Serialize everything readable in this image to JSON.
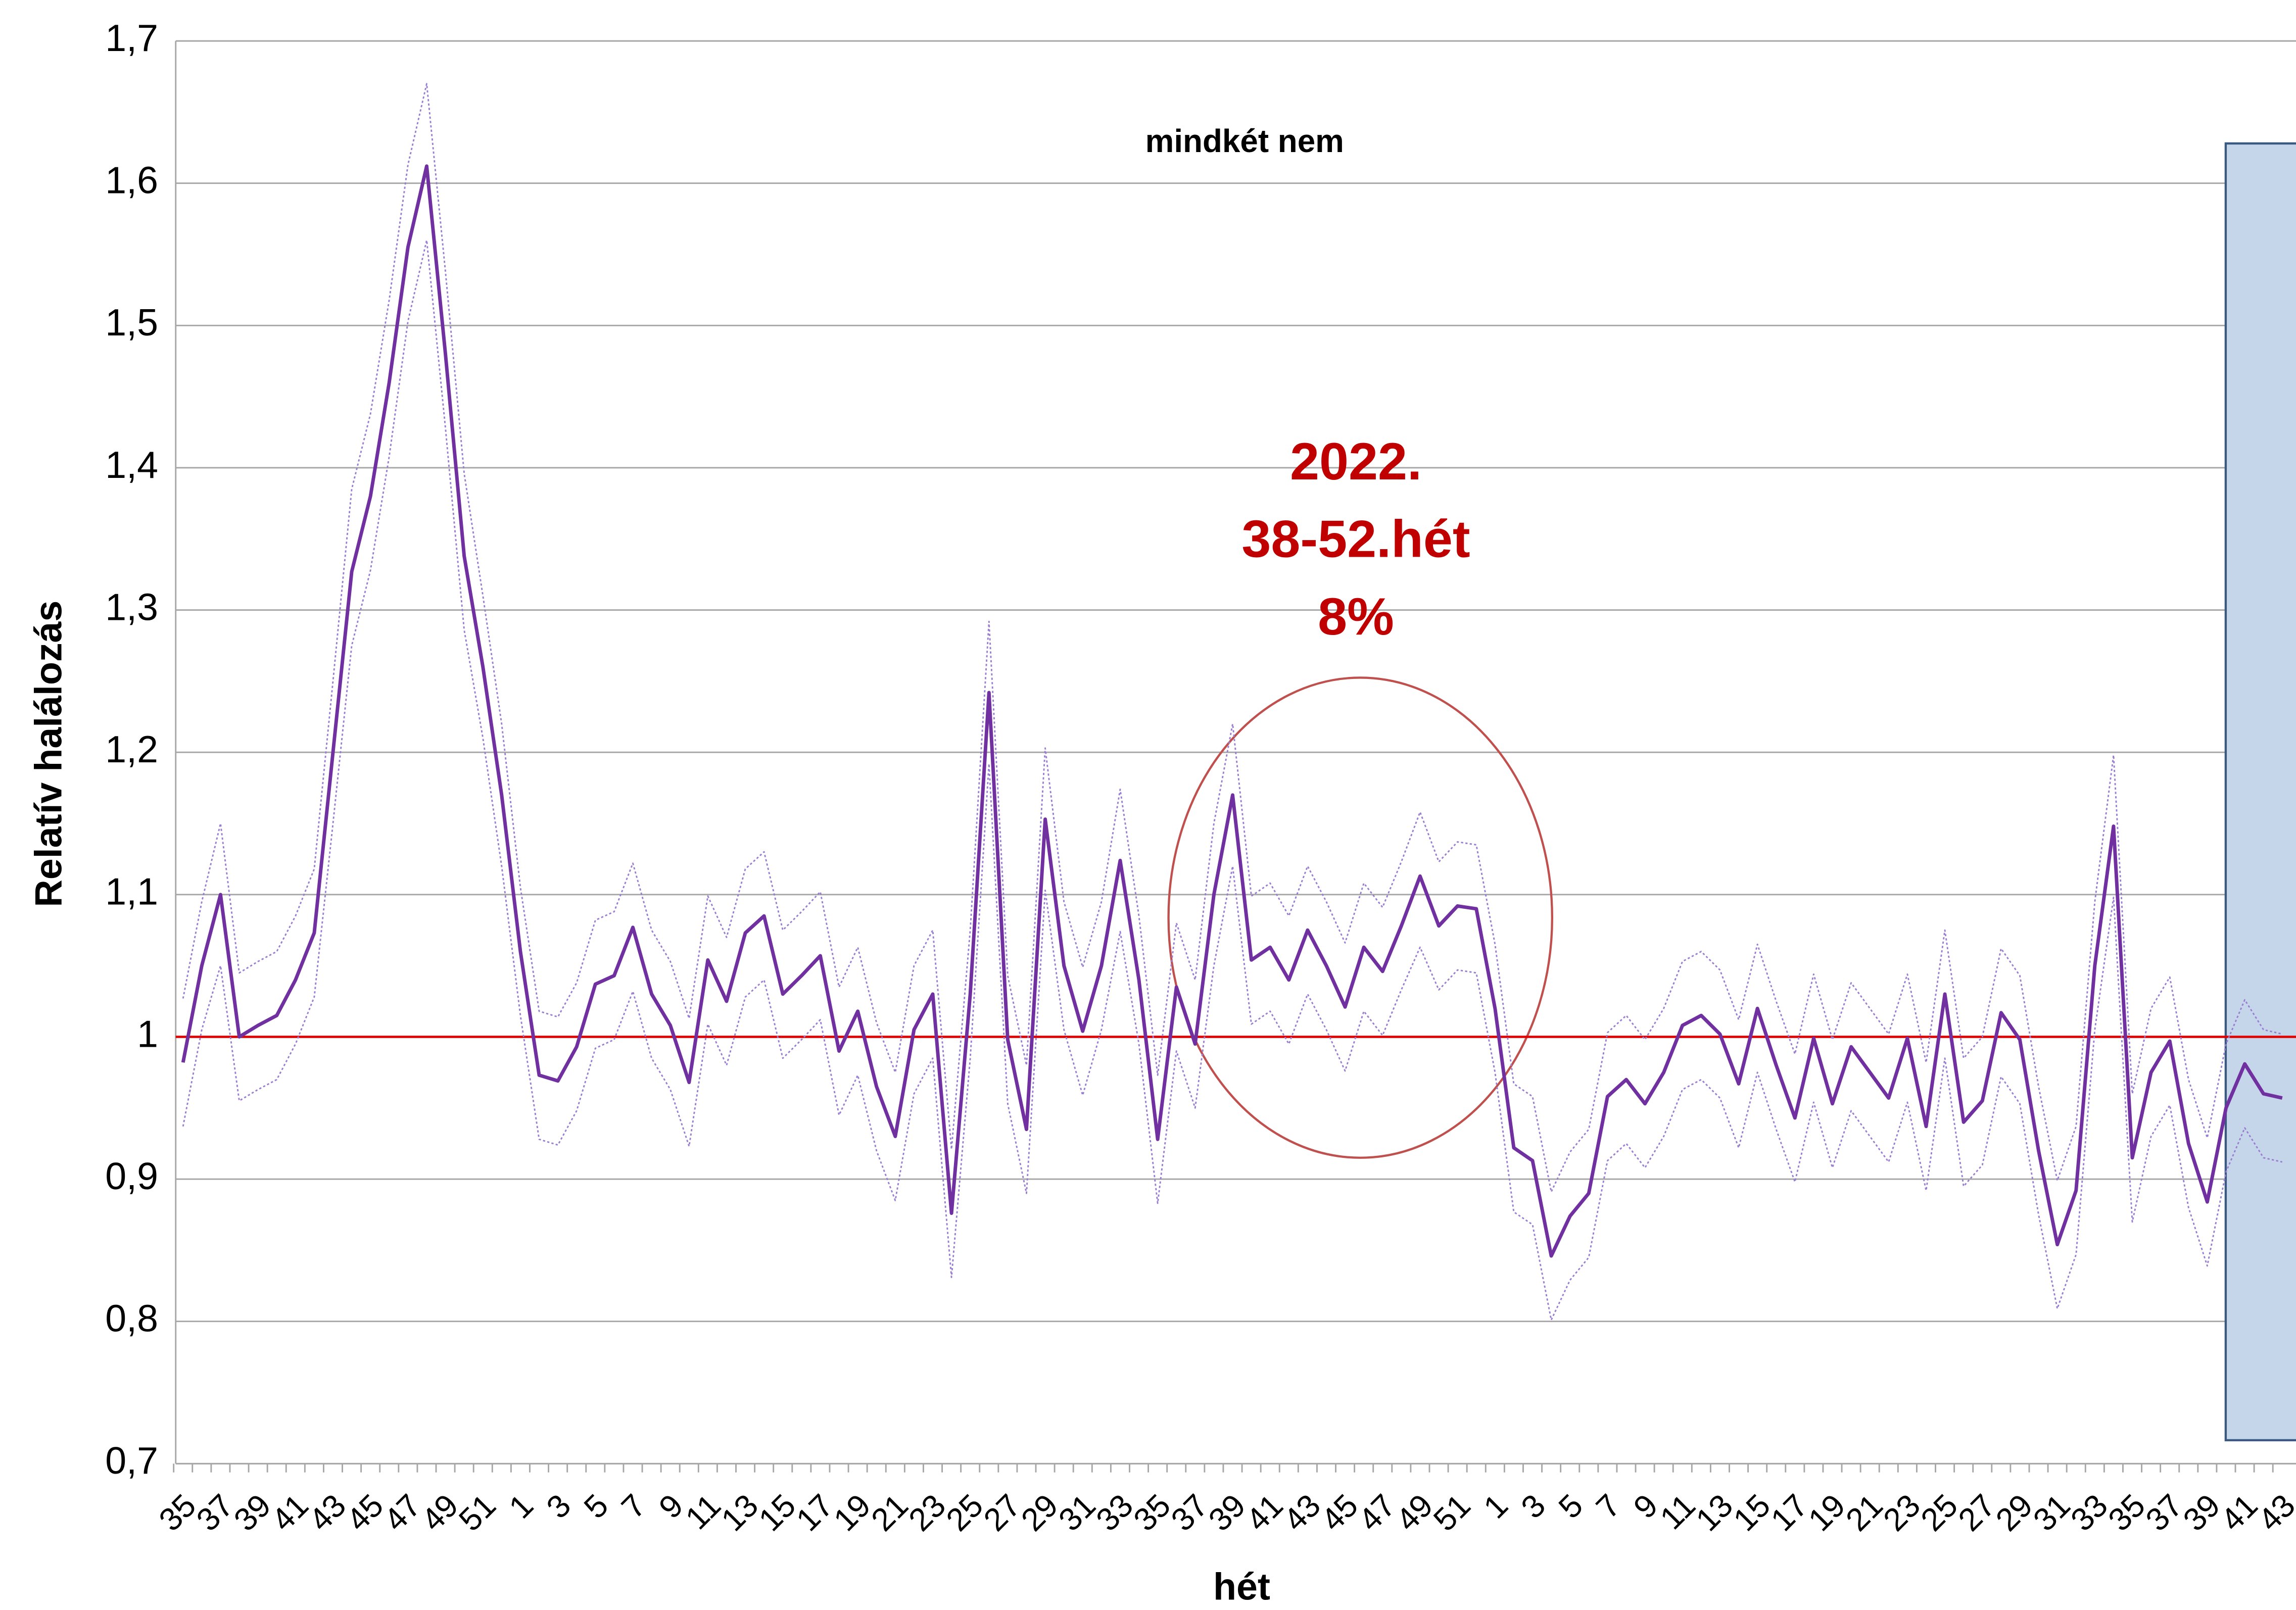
{
  "chart_data": {
    "type": "line",
    "title": "mindkét nem",
    "x_label": "hét",
    "y_label": "Relatív halálozás",
    "annotation": [
      "2022.",
      "38-52.hét",
      "8%"
    ],
    "annotation_color": "#c00000",
    "categories": [
      "35",
      null,
      "37",
      null,
      "39",
      null,
      "41",
      null,
      "43",
      null,
      "45",
      null,
      "47",
      null,
      "49",
      null,
      "51",
      null,
      "1",
      null,
      "3",
      null,
      "5",
      null,
      "7",
      null,
      "9",
      null,
      "11",
      null,
      "13",
      null,
      "15",
      null,
      "17",
      null,
      "19",
      null,
      "21",
      null,
      "23",
      null,
      "25",
      null,
      "27",
      null,
      "29",
      null,
      "31",
      null,
      "33",
      null,
      "35",
      null,
      "37",
      null,
      "39",
      null,
      "41",
      null,
      "43",
      null,
      "45",
      null,
      "47",
      null,
      "49",
      null,
      "51",
      null,
      "1",
      null,
      "3",
      null,
      "5",
      null,
      "7",
      null,
      "9",
      null,
      "11",
      null,
      "13",
      null,
      "15",
      null,
      "17",
      null,
      "19",
      null,
      "21",
      null,
      "23",
      null,
      "25",
      null,
      "27",
      null,
      "29",
      null,
      "31",
      null,
      "33",
      null,
      "35",
      null,
      "37",
      null,
      "39",
      null,
      "41",
      null,
      "43"
    ],
    "series": [
      {
        "color": "#7030a0",
        "style": "solid",
        "values": [
          0.982,
          1.05,
          1.1,
          1.0,
          1.008,
          1.015,
          1.04,
          1.073,
          1.2,
          1.327,
          1.38,
          1.46,
          1.555,
          1.612,
          1.48,
          1.338,
          1.26,
          1.17,
          1.06,
          0.973,
          0.969,
          0.993,
          1.037,
          1.043,
          1.077,
          1.03,
          1.008,
          0.968,
          1.054,
          1.025,
          1.073,
          1.085,
          1.03,
          1.043,
          1.057,
          0.99,
          1.018,
          0.965,
          0.93,
          1.005,
          1.03,
          0.876,
          1.03,
          1.242,
          0.998,
          0.935,
          1.153,
          1.05,
          1.004,
          1.05,
          1.124,
          1.04,
          0.928,
          1.035,
          0.995,
          1.1,
          1.17,
          1.054,
          1.063,
          1.04,
          1.075,
          1.05,
          1.021,
          1.063,
          1.046,
          1.078,
          1.113,
          1.078,
          1.092,
          1.09,
          1.02,
          0.922,
          0.913,
          0.846,
          0.874,
          0.89,
          0.958,
          0.97,
          0.953,
          0.975,
          1.008,
          1.015,
          1.002,
          0.967,
          1.02,
          0.98,
          0.943,
          0.999,
          0.953,
          0.993,
          0.975,
          0.957,
          0.999,
          0.937,
          1.03,
          0.94,
          0.955,
          1.017,
          0.998,
          0.92,
          0.854,
          0.892,
          1.05,
          1.148,
          0.915,
          0.975,
          0.997,
          0.925,
          0.884,
          0.95,
          0.981,
          0.96,
          0.957
        ]
      },
      {
        "color": "#9a7fd1",
        "style": "dotted",
        "values": [
          1.027,
          1.095,
          1.15,
          1.045,
          1.053,
          1.06,
          1.085,
          1.118,
          1.25,
          1.385,
          1.438,
          1.518,
          1.613,
          1.67,
          1.538,
          1.396,
          1.31,
          1.22,
          1.105,
          1.018,
          1.014,
          1.038,
          1.082,
          1.088,
          1.122,
          1.075,
          1.053,
          1.013,
          1.099,
          1.07,
          1.118,
          1.13,
          1.075,
          1.088,
          1.102,
          1.035,
          1.063,
          1.01,
          0.975,
          1.05,
          1.075,
          0.921,
          1.075,
          1.292,
          1.043,
          0.98,
          1.203,
          1.095,
          1.049,
          1.095,
          1.174,
          1.085,
          0.973,
          1.08,
          1.04,
          1.15,
          1.22,
          1.099,
          1.108,
          1.085,
          1.12,
          1.095,
          1.066,
          1.108,
          1.091,
          1.123,
          1.158,
          1.123,
          1.137,
          1.135,
          1.065,
          0.967,
          0.958,
          0.891,
          0.919,
          0.935,
          1.003,
          1.015,
          0.998,
          1.02,
          1.053,
          1.06,
          1.047,
          1.012,
          1.065,
          1.025,
          0.988,
          1.044,
          0.998,
          1.038,
          1.02,
          1.002,
          1.044,
          0.982,
          1.075,
          0.985,
          1.0,
          1.062,
          1.043,
          0.965,
          0.899,
          0.937,
          1.095,
          1.198,
          0.96,
          1.02,
          1.042,
          0.97,
          0.929,
          0.995,
          1.026,
          1.005,
          1.002
        ]
      },
      {
        "color": "#9a7fd1",
        "style": "dotted",
        "values": [
          0.937,
          1.005,
          1.05,
          0.955,
          0.963,
          0.97,
          0.995,
          1.028,
          1.15,
          1.275,
          1.328,
          1.408,
          1.503,
          1.56,
          1.428,
          1.286,
          1.21,
          1.12,
          1.015,
          0.928,
          0.924,
          0.948,
          0.992,
          0.998,
          1.032,
          0.985,
          0.963,
          0.923,
          1.009,
          0.98,
          1.028,
          1.04,
          0.985,
          0.998,
          1.012,
          0.945,
          0.973,
          0.92,
          0.885,
          0.96,
          0.985,
          0.831,
          0.985,
          1.192,
          0.953,
          0.89,
          1.103,
          1.005,
          0.959,
          1.005,
          1.074,
          0.995,
          0.883,
          0.99,
          0.95,
          1.05,
          1.12,
          1.009,
          1.018,
          0.995,
          1.03,
          1.005,
          0.976,
          1.018,
          1.001,
          1.033,
          1.063,
          1.033,
          1.047,
          1.045,
          0.975,
          0.877,
          0.868,
          0.801,
          0.829,
          0.845,
          0.913,
          0.925,
          0.908,
          0.93,
          0.963,
          0.97,
          0.957,
          0.922,
          0.975,
          0.935,
          0.898,
          0.954,
          0.908,
          0.948,
          0.93,
          0.912,
          0.954,
          0.892,
          0.985,
          0.895,
          0.91,
          0.972,
          0.953,
          0.875,
          0.809,
          0.847,
          1.005,
          1.098,
          0.87,
          0.93,
          0.952,
          0.88,
          0.839,
          0.905,
          0.936,
          0.915,
          0.912
        ]
      }
    ],
    "reference_line": 1,
    "reference_color": "#e00000",
    "ylim": [
      0.7,
      1.7
    ],
    "yticks": [
      {
        "value": 0.7,
        "label": "0,7"
      },
      {
        "value": 0.8,
        "label": "0,8"
      },
      {
        "value": 0.9,
        "label": "0,9"
      },
      1,
      {
        "value": 1.1,
        "label": "1,1"
      },
      {
        "value": 1.2,
        "label": "1,2"
      },
      {
        "value": 1.3,
        "label": "1,3"
      },
      {
        "value": 1.4,
        "label": "1,4"
      },
      {
        "value": 1.5,
        "label": "1,5"
      },
      {
        "value": 1.6,
        "label": "1,6"
      },
      {
        "value": 1.7,
        "label": "1,7"
      }
    ],
    "grid": true
  }
}
